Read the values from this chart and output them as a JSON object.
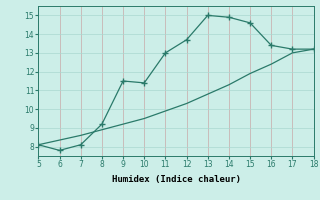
{
  "xlabel": "Humidex (Indice chaleur)",
  "xlim": [
    5,
    18
  ],
  "ylim": [
    7.5,
    15.5
  ],
  "xticks": [
    5,
    6,
    7,
    8,
    9,
    10,
    11,
    12,
    13,
    14,
    15,
    16,
    17,
    18
  ],
  "yticks": [
    8,
    9,
    10,
    11,
    12,
    13,
    14,
    15
  ],
  "line1_x": [
    5,
    6,
    7,
    8,
    9,
    10,
    11,
    12,
    13,
    14,
    15,
    16,
    17,
    18
  ],
  "line1_y": [
    8.1,
    7.8,
    8.1,
    9.2,
    11.5,
    11.4,
    13.0,
    13.7,
    15.0,
    14.9,
    14.6,
    13.4,
    13.2,
    13.2
  ],
  "line2_x": [
    5,
    6,
    7,
    8,
    9,
    10,
    11,
    12,
    13,
    14,
    15,
    16,
    17,
    18
  ],
  "line2_y": [
    8.1,
    8.35,
    8.6,
    8.9,
    9.2,
    9.5,
    9.9,
    10.3,
    10.8,
    11.3,
    11.9,
    12.4,
    13.0,
    13.2
  ],
  "line_color": "#2a7a6a",
  "bg_color": "#cceee8",
  "grid_color": "#aad8d0",
  "marker": "+",
  "marker_size": 4,
  "linewidth": 0.9
}
